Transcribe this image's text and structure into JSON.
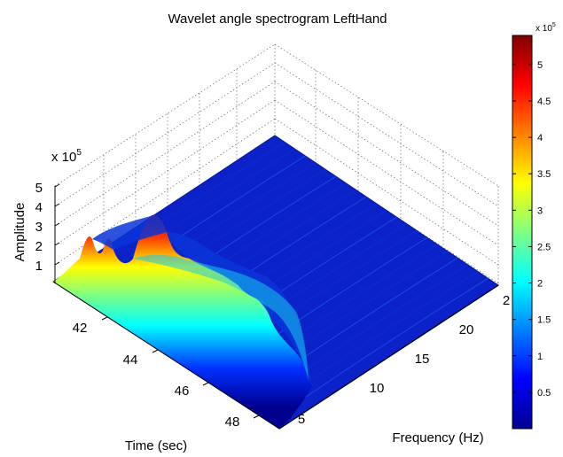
{
  "chart_data": {
    "type": "surface",
    "title": "Wavelet angle spectrogram LeftHand",
    "xlabel": "Time (sec)",
    "ylabel": "Frequency (Hz)",
    "zlabel": "Amplitude",
    "x_ticks": [
      "42",
      "44",
      "46",
      "48"
    ],
    "y_ticks": [
      "5",
      "10",
      "15",
      "20",
      "2"
    ],
    "z_ticks": [
      "1",
      "2",
      "3",
      "4",
      "5"
    ],
    "z_multiplier": "x 10",
    "z_multiplier_exp": "5",
    "xlim": [
      40.5,
      49.5
    ],
    "ylim": [
      1,
      25
    ],
    "zlim": [
      0,
      500000
    ],
    "grid": true,
    "colormap": "jet",
    "colorbar": {
      "ticks": [
        "0.5",
        "1",
        "1.5",
        "2",
        "2.5",
        "3",
        "3.5",
        "4",
        "4.5",
        "5"
      ],
      "multiplier": "x 10",
      "multiplier_exp": "5",
      "range": [
        0,
        540000
      ]
    },
    "ridge_profile": {
      "time": [
        40.6,
        41.0,
        41.4,
        41.6,
        42.0,
        42.4,
        42.7,
        43.0,
        43.3,
        43.6,
        44.0,
        44.3,
        44.7,
        45.0,
        45.4,
        45.8,
        46.2,
        46.6,
        47.0,
        47.4,
        47.8,
        48.2,
        48.6,
        49.0,
        49.4
      ],
      "frequency": [
        3.2,
        3.2,
        3.2,
        3.2,
        3.2,
        3.2,
        3.1,
        3.1,
        3.1,
        3.1,
        3.1,
        3.0,
        3.0,
        3.0,
        3.0,
        3.0,
        3.0,
        3.0,
        3.0,
        2.9,
        2.9,
        2.9,
        2.9,
        2.9,
        2.9
      ],
      "amplitude": [
        5000,
        20000,
        60000,
        150000,
        100000,
        60000,
        200000,
        450000,
        540000,
        470000,
        420000,
        380000,
        370000,
        350000,
        300000,
        280000,
        300000,
        320000,
        300000,
        250000,
        250000,
        220000,
        150000,
        60000,
        20000
      ]
    }
  }
}
